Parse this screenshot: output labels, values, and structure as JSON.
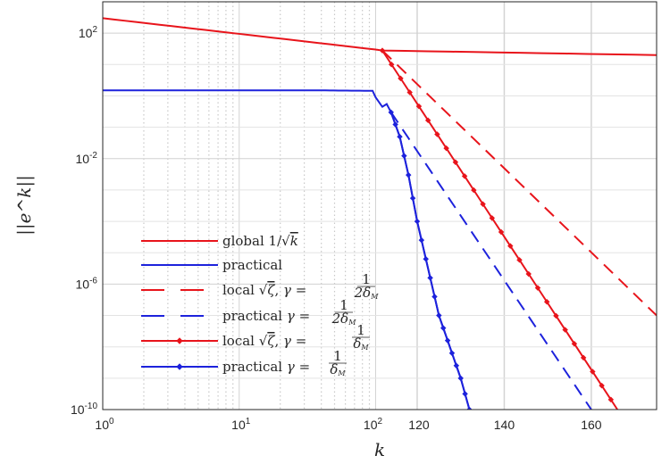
{
  "chart_data": {
    "type": "line",
    "xlabel": "k",
    "ylabel": "||e^k||",
    "x_axis": {
      "segments": [
        {
          "scale": "log",
          "range": [
            1,
            112
          ],
          "ticks": [
            {
              "base": "10",
              "exp": "0"
            },
            {
              "base": "10",
              "exp": "1"
            },
            {
              "base": "10",
              "exp": "2"
            }
          ]
        },
        {
          "scale": "linear",
          "range": [
            112,
            175
          ],
          "ticks": [
            "120",
            "140",
            "160"
          ]
        }
      ]
    },
    "y_axis": {
      "scale": "log",
      "range": [
        1e-10,
        1000
      ],
      "ticks": [
        {
          "value": 100,
          "base": "10",
          "exp": "2"
        },
        {
          "value": 0.01,
          "base": "10",
          "exp": "-2"
        },
        {
          "value": 1e-06,
          "base": "10",
          "exp": "-6"
        },
        {
          "value": 1e-10,
          "base": "10",
          "exp": "-10"
        }
      ]
    },
    "grid": true,
    "legend_position": "lower-left",
    "series": [
      {
        "name": "global 1/√k",
        "color": "#e8141b",
        "style": "solid",
        "marker": "none",
        "points": [
          [
            1,
            300
          ],
          [
            10,
            95
          ],
          [
            100,
            30
          ],
          [
            112,
            28
          ],
          [
            175,
            20
          ]
        ]
      },
      {
        "name": "practical",
        "color": "#1d22dc",
        "style": "solid",
        "marker": "none",
        "points": [
          [
            1,
            1.5
          ],
          [
            40,
            1.5
          ],
          [
            95,
            1.45
          ],
          [
            100,
            0.9
          ],
          [
            110,
            0.5
          ],
          [
            112,
            0.45
          ],
          [
            113,
            0.55
          ],
          [
            114,
            0.3
          ],
          [
            116,
            0.05
          ],
          [
            118,
            0.003
          ],
          [
            120,
            0.0001
          ],
          [
            125,
            1e-07
          ],
          [
            130,
            1e-09
          ],
          [
            132,
            1e-10
          ]
        ]
      },
      {
        "name": "local √ζ, γ = 1/(2δ_M)",
        "color": "#e8141b",
        "style": "dashed",
        "marker": "none",
        "points": [
          [
            112,
            28
          ],
          [
            175,
            1e-07
          ]
        ]
      },
      {
        "name": "practical γ = 1/(2δ_M)",
        "color": "#1d22dc",
        "style": "dashed",
        "marker": "none",
        "points": [
          [
            114,
            0.3
          ],
          [
            160,
            1e-10
          ]
        ]
      },
      {
        "name": "local √ζ, γ = 1/δ_M",
        "color": "#e8141b",
        "style": "solid",
        "marker": "diamond",
        "points": [
          [
            112,
            28
          ],
          [
            166,
            1e-10
          ]
        ]
      },
      {
        "name": "practical γ = 1/δ_M",
        "color": "#1d22dc",
        "style": "solid",
        "marker": "diamond",
        "points": [
          [
            114,
            0.3
          ],
          [
            116,
            0.05
          ],
          [
            118,
            0.003
          ],
          [
            120,
            0.0001
          ],
          [
            125,
            1e-07
          ],
          [
            130,
            1e-09
          ],
          [
            132,
            1e-10
          ]
        ]
      }
    ]
  }
}
